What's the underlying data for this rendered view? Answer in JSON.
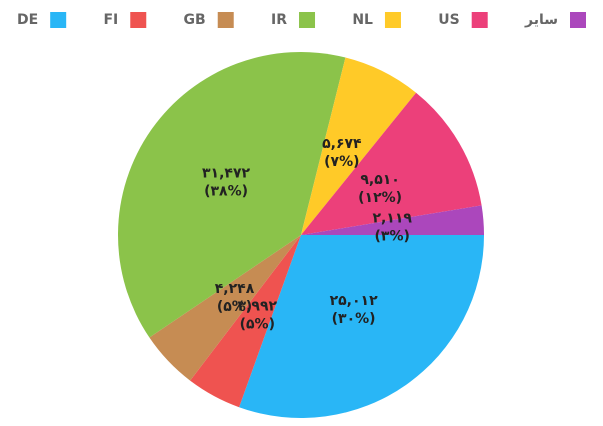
{
  "chart_data": {
    "type": "pie",
    "categories": [
      "DE",
      "FI",
      "GB",
      "IR",
      "NL",
      "US",
      "سایر"
    ],
    "values": [
      25012,
      3992,
      4248,
      31472,
      5674,
      9510,
      2119
    ],
    "value_labels": [
      "۲۵,۰۱۲",
      "۳,۹۹۲",
      "۴,۲۴۸",
      "۳۱,۴۷۲",
      "۵,۶۷۴",
      "۹,۵۱۰",
      "۲,۱۱۹"
    ],
    "percent_labels": [
      "(۳۰%)",
      "(۵%)",
      "(۵%)",
      "(۳۸%)",
      "(۷%)",
      "(۱۲%)",
      "(۳%)"
    ],
    "colors": [
      "#29b6f6",
      "#ef5350",
      "#c68c53",
      "#8bc34a",
      "#ffca28",
      "#ec407a",
      "#ab47bc"
    ],
    "legend": "top"
  }
}
